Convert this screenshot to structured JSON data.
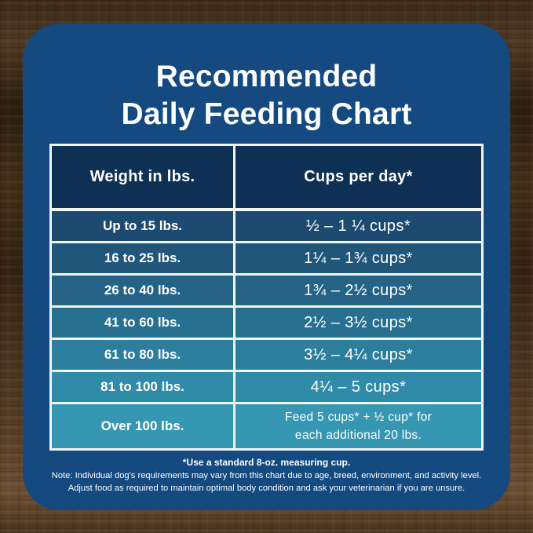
{
  "title": {
    "line1": "Recommended",
    "line2": "Daily Feeding Chart"
  },
  "table": {
    "headers": [
      "Weight in lbs.",
      "Cups per day*"
    ],
    "rows": [
      {
        "weight": "Up to 15 lbs.",
        "cups": "½ – 1 ¼ cups*",
        "bg": "#1d4a70"
      },
      {
        "weight": "16 to 25 lbs.",
        "cups": "1¼ – 1¾ cups*",
        "bg": "#21567b"
      },
      {
        "weight": "26 to 40 lbs.",
        "cups": "1¾ – 2½ cups*",
        "bg": "#256386"
      },
      {
        "weight": "41 to 60 lbs.",
        "cups": "2½ – 3½ cups*",
        "bg": "#287090"
      },
      {
        "weight": "61 to 80 lbs.",
        "cups": "3½ – 4¼ cups*",
        "bg": "#2c7e9c"
      },
      {
        "weight": "81 to 100 lbs.",
        "cups": "4¼ – 5 cups*",
        "bg": "#308ba8"
      },
      {
        "weight": "Over 100 lbs.",
        "cups": "Feed 5 cups* + ½ cup* for\neach additional 20 lbs.",
        "bg": "#3697b3"
      }
    ]
  },
  "notes": {
    "line1": "*Use a standard 8-oz. measuring cup.",
    "line2": "Note: Individual dog's requirements may vary from this chart due to age, breed, environment, and activity level.",
    "line3": "Adjust food as required to maintain optimal body condition and ask your veterinarian if you are unsure."
  },
  "colors": {
    "card_bg": "#144a80",
    "header_bg": "#0d3054",
    "table_border": "#f2f5f6",
    "text": "#ffffff"
  },
  "chart_data": {
    "type": "table",
    "title": "Recommended Daily Feeding Chart",
    "columns": [
      "Weight in lbs.",
      "Cups per day*"
    ],
    "rows": [
      [
        "Up to 15 lbs.",
        "½ – 1 ¼ cups*"
      ],
      [
        "16 to 25 lbs.",
        "1¼ – 1¾ cups*"
      ],
      [
        "26 to 40 lbs.",
        "1¾ – 2½ cups*"
      ],
      [
        "41 to 60 lbs.",
        "2½ – 3½ cups*"
      ],
      [
        "61 to 80 lbs.",
        "3½ – 4¼ cups*"
      ],
      [
        "81 to 100 lbs.",
        "4¼ – 5 cups*"
      ],
      [
        "Over 100 lbs.",
        "Feed 5 cups* + ½ cup* for each additional 20 lbs."
      ]
    ],
    "footnotes": [
      "*Use a standard 8-oz. measuring cup.",
      "Note: Individual dog's requirements may vary from this chart due to age, breed, environment, and activity level.",
      "Adjust food as required to maintain optimal body condition and ask your veterinarian if you are unsure."
    ]
  }
}
